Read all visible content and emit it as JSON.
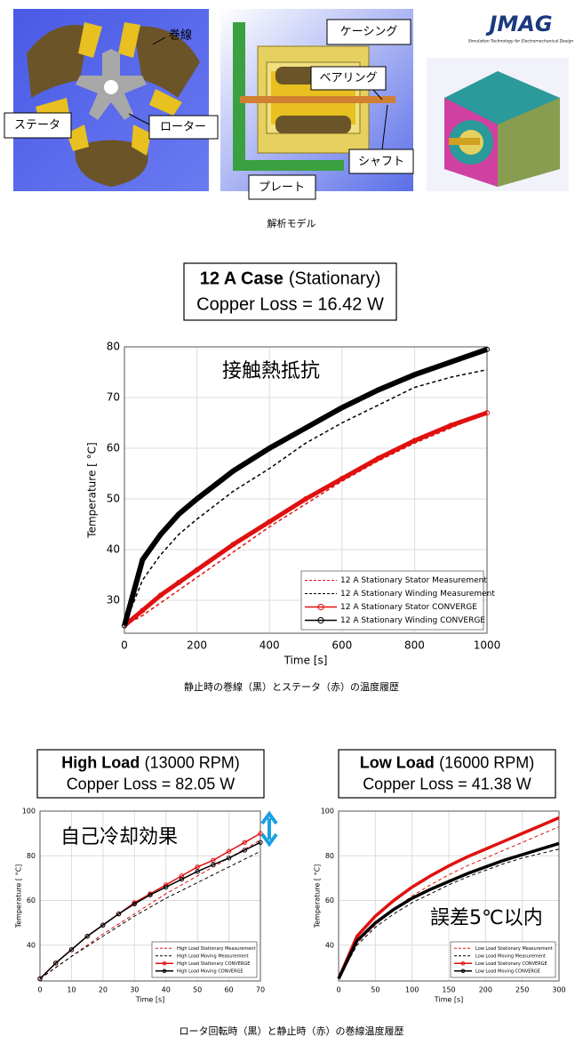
{
  "model_labels": {
    "winding": "巻線",
    "stator": "ステータ",
    "rotor": "ローター",
    "casing": "ケーシング",
    "bearing": "ベアリング",
    "shaft": "シャフト",
    "plate": "プレート"
  },
  "logo": {
    "name": "JMAG",
    "tagline": "Simulation Technology for Electromechanical Design"
  },
  "captions": [
    "解析モデル",
    "静止時の巻線（黒）とステータ（赤）の温度履歴",
    "ロータ回転時（黒）と静止時（赤）の巻線温度履歴"
  ],
  "chart_data": [
    {
      "type": "line",
      "title": "12 A Case",
      "subtitle": "(Stationary)",
      "copper_loss": "Copper Loss = 16.42 W",
      "annotation": "接触熱抵抗",
      "xlabel": "Time [s]",
      "ylabel": "Temperature [ °C]",
      "xlim": [
        0,
        1000
      ],
      "ylim": [
        23.5,
        80
      ],
      "xticks": [
        0,
        200,
        400,
        600,
        800,
        1000
      ],
      "yticks": [
        30,
        40,
        50,
        60,
        70,
        80
      ],
      "grid": true,
      "legend": "lower right",
      "x": [
        0,
        50,
        100,
        150,
        200,
        300,
        400,
        500,
        600,
        700,
        800,
        900,
        1000
      ],
      "series": [
        {
          "name": "12 A Stationary Stator Measurement",
          "color": "#e01010",
          "line_style": "dashed",
          "values": [
            25,
            27,
            29.5,
            32,
            34.5,
            39.5,
            44.5,
            49,
            53.5,
            57.5,
            61,
            64,
            67
          ]
        },
        {
          "name": "12 A Stationary Winding Measurement",
          "color": "#000000",
          "line_style": "dashed",
          "values": [
            25,
            34,
            39,
            43,
            46,
            51.5,
            56,
            61,
            65,
            68.5,
            72,
            74,
            75.5
          ]
        },
        {
          "name": "12 A Stationary Stator CONVERGE",
          "color": "#e01010",
          "line_style": "solid",
          "marker": "circle",
          "values": [
            25,
            28,
            31,
            33.5,
            36,
            41,
            45.5,
            50,
            54,
            58,
            61.5,
            64.5,
            67
          ]
        },
        {
          "name": "12 A Stationary Winding CONVERGE",
          "color": "#000000",
          "line_style": "solid",
          "marker": "circle",
          "values": [
            25,
            38,
            43,
            47,
            50,
            55.5,
            60,
            64,
            68,
            71.5,
            74.5,
            77,
            79.5
          ]
        }
      ]
    },
    {
      "type": "line",
      "title": "High Load",
      "subtitle": "(13000 RPM)",
      "copper_loss": "Copper Loss = 82.05 W",
      "annotation": "自己冷却効果",
      "xlabel": "Time [s]",
      "ylabel": "Temperature [ °C]",
      "xlim": [
        0,
        70
      ],
      "ylim": [
        24,
        100
      ],
      "xticks": [
        0,
        10,
        20,
        30,
        40,
        50,
        60,
        70
      ],
      "yticks": [
        40,
        60,
        80,
        100
      ],
      "grid": true,
      "legend": "lower right",
      "x": [
        0,
        5,
        10,
        15,
        20,
        25,
        30,
        35,
        40,
        45,
        50,
        55,
        60,
        65,
        70
      ],
      "series": [
        {
          "name": "High Load Stationary Measurement",
          "color": "#e01010",
          "line_style": "dashed",
          "values": [
            25,
            30,
            35,
            40,
            45,
            49.5,
            54,
            58.5,
            63,
            67,
            71,
            75,
            79,
            83,
            87
          ]
        },
        {
          "name": "High Load Moving Measurement",
          "color": "#000000",
          "line_style": "dashed",
          "values": [
            25,
            30,
            35,
            39.5,
            44,
            48.5,
            53,
            57,
            61,
            64.5,
            68,
            71.5,
            75,
            78.5,
            82
          ]
        },
        {
          "name": "High Load Stationary CONVERGE",
          "color": "#e01010",
          "line_style": "solid",
          "marker": "circle",
          "values": [
            25,
            32,
            38,
            44,
            49,
            54,
            59,
            63,
            67,
            71,
            75,
            78,
            82,
            86,
            90
          ]
        },
        {
          "name": "High Load Moving CONVERGE",
          "color": "#000000",
          "line_style": "solid",
          "marker": "circle",
          "values": [
            25,
            32,
            38,
            44,
            49,
            54,
            58.5,
            62.5,
            66,
            69.5,
            73,
            76,
            79,
            82.5,
            86
          ]
        }
      ]
    },
    {
      "type": "line",
      "title": "Low Load",
      "subtitle": "(16000 RPM)",
      "copper_loss": "Copper Loss = 41.38 W",
      "annotation": "誤差5℃以内",
      "xlabel": "Time [s]",
      "ylabel": "Temperature [ °C]",
      "xlim": [
        0,
        300
      ],
      "ylim": [
        24,
        100
      ],
      "xticks": [
        0,
        50,
        100,
        150,
        200,
        250,
        300
      ],
      "yticks": [
        40,
        60,
        80,
        100
      ],
      "grid": true,
      "legend": "lower right",
      "x": [
        0,
        25,
        50,
        75,
        100,
        125,
        150,
        175,
        200,
        225,
        250,
        275,
        300
      ],
      "series": [
        {
          "name": "Low Load Stationary Measurement",
          "color": "#e01010",
          "line_style": "dashed",
          "values": [
            25,
            41,
            49,
            56,
            62,
            67,
            71.5,
            75.5,
            79,
            82.5,
            86,
            89.5,
            93
          ]
        },
        {
          "name": "Low Load Moving Measurement",
          "color": "#000000",
          "line_style": "dashed",
          "values": [
            25,
            40,
            48,
            54,
            59,
            63,
            67,
            70.5,
            73.5,
            76.5,
            79,
            81,
            83
          ]
        },
        {
          "name": "Low Load Stationary CONVERGE",
          "color": "#e01010",
          "line_style": "solid",
          "marker": "circle",
          "values": [
            25,
            44,
            53,
            60,
            66,
            71,
            75.5,
            79.5,
            83,
            86.5,
            90,
            93.5,
            97
          ]
        },
        {
          "name": "Low Load Moving CONVERGE",
          "color": "#000000",
          "line_style": "solid",
          "marker": "circle",
          "values": [
            25,
            42,
            50,
            56,
            61,
            65,
            68.5,
            72,
            75,
            78,
            80.5,
            83,
            85.5
          ]
        }
      ]
    }
  ]
}
